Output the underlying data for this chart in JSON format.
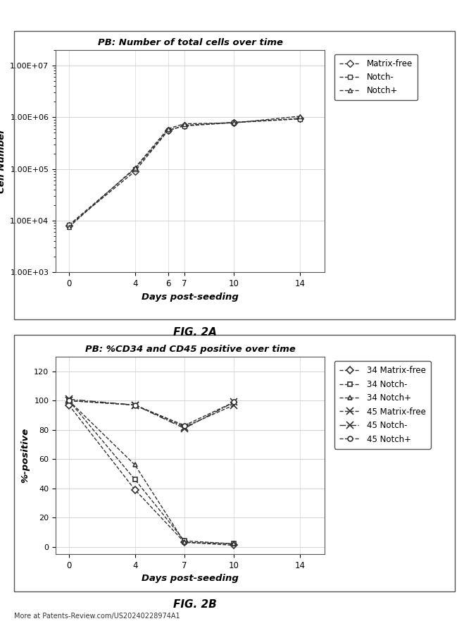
{
  "fig2a": {
    "title": "PB: Number of total cells over time",
    "xlabel": "Days post-seeding",
    "ylabel": "Cell Number",
    "x_ticks": [
      0,
      4,
      6,
      7,
      10,
      14
    ],
    "xlim": [
      -0.8,
      15.5
    ],
    "series": {
      "Matrix-free": {
        "x": [
          0,
          4,
          6,
          7,
          10,
          14
        ],
        "y": [
          8000,
          90000,
          550000,
          700000,
          800000,
          950000
        ],
        "marker": "D",
        "linestyle": "--",
        "label": "Matrix-free"
      },
      "Notch-": {
        "x": [
          0,
          4,
          6,
          7,
          10,
          14
        ],
        "y": [
          8200,
          100000,
          560000,
          680000,
          790000,
          930000
        ],
        "marker": "s",
        "linestyle": "--",
        "label": "Notch-"
      },
      "Notch+": {
        "x": [
          0,
          4,
          6,
          7,
          10,
          14
        ],
        "y": [
          7500,
          105000,
          600000,
          750000,
          780000,
          1050000
        ],
        "marker": "^",
        "linestyle": "--",
        "label": "Notch+"
      }
    },
    "ylim": [
      1000,
      20000000.0
    ],
    "yticks": [
      1000,
      10000,
      100000,
      1000000,
      10000000
    ],
    "ytick_labels": [
      "1.00E+03",
      "1.00E+04",
      "1.00E+05",
      "1.00E+06",
      "1.00E+07"
    ]
  },
  "fig2b": {
    "title": "PB: %CD34 and CD45 positive over time",
    "xlabel": "Days post-seeding",
    "ylabel": "%-positive",
    "x_ticks": [
      0,
      4,
      7,
      10,
      14
    ],
    "xlim": [
      -0.8,
      15.5
    ],
    "series": {
      "34 Matrix-free": {
        "x": [
          0,
          4,
          7,
          10
        ],
        "y": [
          97,
          39,
          3,
          1
        ],
        "marker": "D",
        "linestyle": "--",
        "label": "34 Matrix-free"
      },
      "34 Notch-": {
        "x": [
          0,
          4,
          7,
          10
        ],
        "y": [
          100,
          46,
          4,
          2
        ],
        "marker": "s",
        "linestyle": "--",
        "label": "34 Notch-"
      },
      "34 Notch+": {
        "x": [
          0,
          4,
          7,
          10
        ],
        "y": [
          100,
          56,
          3,
          2
        ],
        "marker": "^",
        "linestyle": "--",
        "label": "34 Notch+"
      },
      "45 Matrix-free": {
        "x": [
          0,
          4,
          7,
          10
        ],
        "y": [
          100,
          97,
          82,
          97
        ],
        "marker": "x",
        "linestyle": "--",
        "label": "45 Matrix-free"
      },
      "45 Notch-": {
        "x": [
          0,
          4,
          7,
          10
        ],
        "y": [
          101,
          97,
          81,
          99
        ],
        "marker": "x",
        "linestyle": "-.",
        "label": "45 Notch-"
      },
      "45 Notch+": {
        "x": [
          0,
          4,
          7,
          10
        ],
        "y": [
          100,
          97,
          83,
          99
        ],
        "marker": "o",
        "linestyle": "--",
        "label": "45 Notch+"
      }
    },
    "ylim": [
      -5,
      130
    ],
    "yticks": [
      0,
      20,
      40,
      60,
      80,
      100,
      120
    ]
  },
  "fig2a_label": "FIG. 2A",
  "fig2b_label": "FIG. 2B",
  "footer": "More at Patents-Review.com/US20240228974A1",
  "line_color": "#303030",
  "bg_color": "#ffffff"
}
